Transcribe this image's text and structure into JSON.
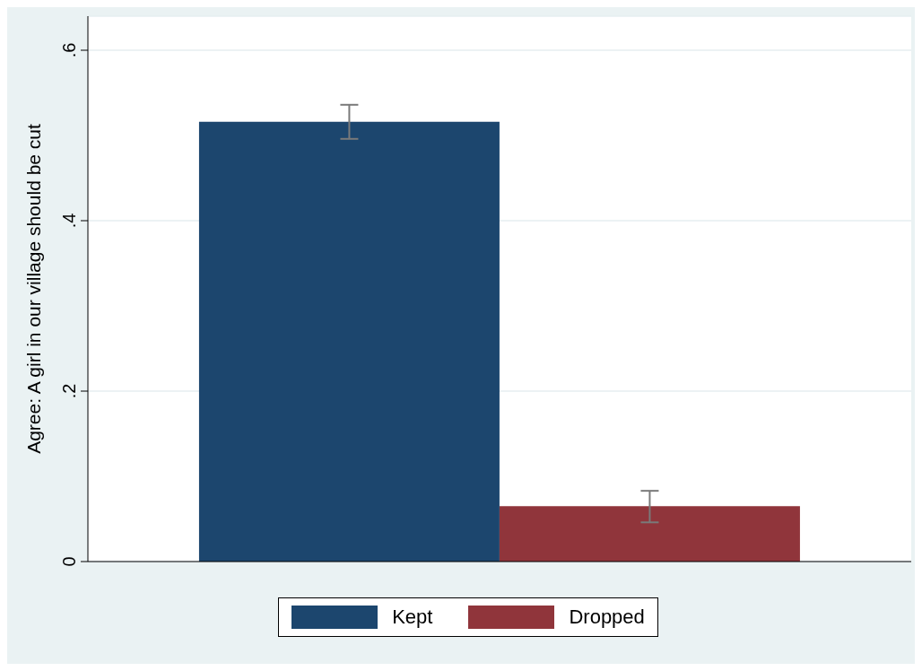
{
  "chart_data": {
    "type": "bar",
    "ylabel": "Agree: A girl in our village should be cut",
    "categories": [
      null
    ],
    "series": [
      {
        "name": "Kept",
        "color": "#1c466e",
        "values": [
          0.516
        ],
        "errors": [
          [
            0.496,
            0.536
          ]
        ]
      },
      {
        "name": "Dropped",
        "color": "#90353b",
        "values": [
          0.065
        ],
        "errors": [
          [
            0.046,
            0.083
          ]
        ]
      }
    ],
    "ylim": [
      0,
      0.64
    ],
    "yticks": [
      {
        "value": 0,
        "label": "0"
      },
      {
        "value": 0.2,
        "label": ".2"
      },
      {
        "value": 0.4,
        "label": ".4"
      },
      {
        "value": 0.6,
        "label": ".6"
      }
    ],
    "grid": "y",
    "legend": "bottom"
  }
}
